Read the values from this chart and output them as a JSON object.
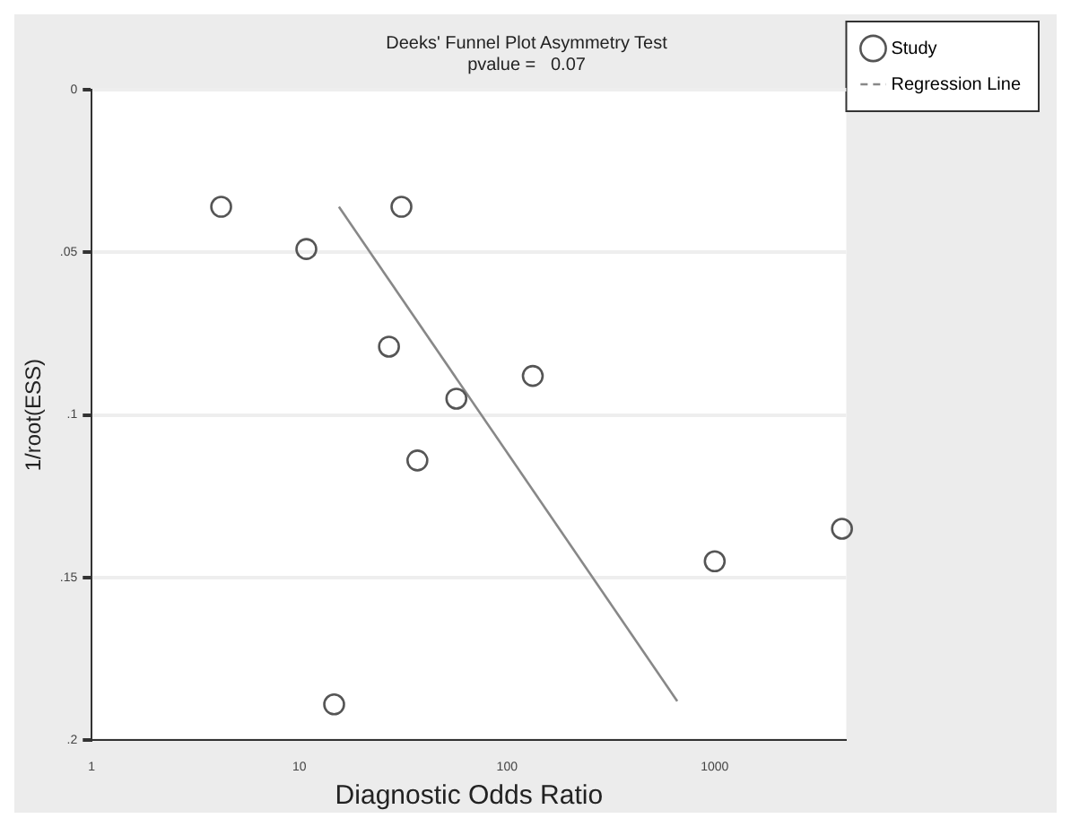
{
  "chart_data": {
    "type": "scatter",
    "title": "Deeks' Funnel Plot Asymmetry Test",
    "subtitle": "pvalue =   0.07",
    "xlabel": "Diagnostic Odds Ratio",
    "ylabel": "1/root(ESS)",
    "log": "x",
    "xlim": [
      1,
      4300
    ],
    "xticks": [
      1,
      10,
      100,
      1000
    ],
    "ylim": [
      0.2,
      0
    ],
    "yticks": [
      0,
      {
        "value": 0.05,
        "label": ".05"
      },
      {
        "value": 0.1,
        "label": ".1"
      },
      {
        "value": 0.15,
        "label": ".15"
      },
      {
        "value": 0.2,
        "label": ".2"
      }
    ],
    "grid": "y",
    "legend": "top right",
    "marker": "circle",
    "series": [
      {
        "name": "Study",
        "color": "#555555",
        "x": [
          4.2,
          10.8,
          31,
          27,
          133,
          57,
          37,
          1000,
          4100,
          14.7
        ],
        "values": [
          0.036,
          0.049,
          0.036,
          0.079,
          0.088,
          0.095,
          0.114,
          0.145,
          0.135,
          0.189
        ]
      },
      {
        "name": "Regression Line",
        "type": "line",
        "marker": "none",
        "color": "#888888",
        "x": [
          15.5,
          660
        ],
        "values": [
          0.036,
          0.188
        ]
      }
    ]
  }
}
